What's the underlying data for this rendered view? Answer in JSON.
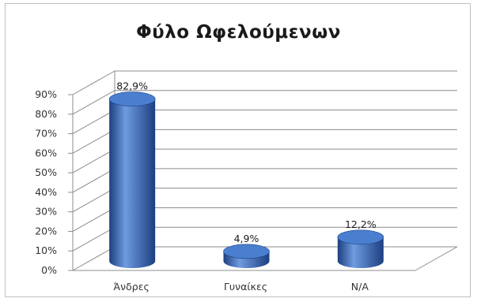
{
  "chart_data": {
    "type": "bar",
    "title": "Φύλο Ωφελούμενων",
    "categories": [
      "Άνδρες",
      "Γυναίκες",
      "N/A"
    ],
    "series": [
      {
        "values": [
          82.9,
          4.9,
          12.2
        ],
        "data_labels": [
          "82,9%",
          "4,9%",
          "12,2%"
        ]
      }
    ],
    "xlabel": "",
    "ylabel": "",
    "ylim": [
      0,
      90
    ],
    "yticks": [
      "0%",
      "10%",
      "20%",
      "30%",
      "40%",
      "50%",
      "60%",
      "70%",
      "80%",
      "90%"
    ],
    "grid": true,
    "legend": "none",
    "style": "3d-cylinder",
    "colors": {
      "bar": "#2f5fb0",
      "bar_dark": "#1c3f80",
      "bar_light": "#6f9be0",
      "bar_top": "#4a7fd0",
      "grid": "#8c8c8c"
    }
  }
}
